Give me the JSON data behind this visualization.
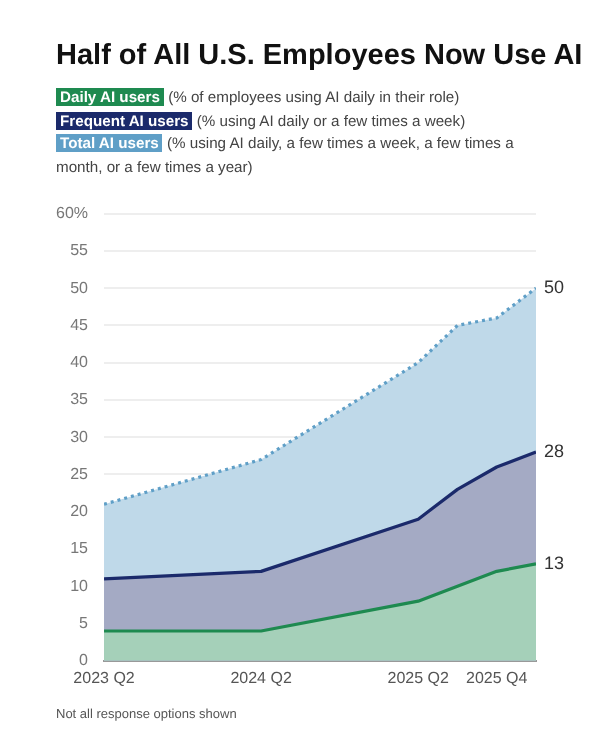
{
  "chart_data": {
    "type": "area",
    "title": "Half of All U.S. Employees Now Use AI",
    "x": [
      "2023-04",
      "2024-04",
      "2025-04",
      "2025-07",
      "2025-10",
      "2026-01"
    ],
    "series": [
      {
        "name": "Total AI users",
        "color": "#5f9fc7",
        "line_style": "dotted",
        "values": [
          21,
          27,
          40,
          45,
          46,
          50
        ],
        "value_labels": [
          null,
          null,
          null,
          null,
          null,
          "50"
        ]
      },
      {
        "name": "Frequent AI users",
        "color": "#1b2a6b",
        "line_style": "solid",
        "values": [
          11,
          12,
          19,
          23,
          26,
          28
        ],
        "value_labels": [
          null,
          null,
          null,
          null,
          null,
          "28"
        ]
      },
      {
        "name": "Daily AI users",
        "color": "#1e8a50",
        "line_style": "solid",
        "values": [
          4,
          4,
          8,
          10,
          12,
          13
        ],
        "value_labels": [
          null,
          null,
          null,
          null,
          null,
          "13"
        ]
      }
    ],
    "xlim": [
      "2023-04",
      "2026-01"
    ],
    "xticks": [
      {
        "value": "2023-04",
        "label": "2023 Q2"
      },
      {
        "value": "2024-04",
        "label": "2024 Q2"
      },
      {
        "value": "2025-04",
        "label": "2025 Q2"
      },
      {
        "value": "2025-10",
        "label": "2025 Q4"
      }
    ],
    "ylim": [
      0,
      60
    ],
    "yticks": [
      0,
      5,
      10,
      15,
      20,
      25,
      30,
      35,
      40,
      45,
      50,
      55,
      {
        "value": 60,
        "label": "60%"
      }
    ],
    "grid": "y",
    "legend": "top",
    "marker": "none",
    "annotations": [
      "(% of employees using AI daily in their role)",
      "(% using AI daily or a few times a week)",
      "(% using AI daily, a few times a week, a few times a month, or a few times a year)",
      "Not all response options shown"
    ]
  }
}
